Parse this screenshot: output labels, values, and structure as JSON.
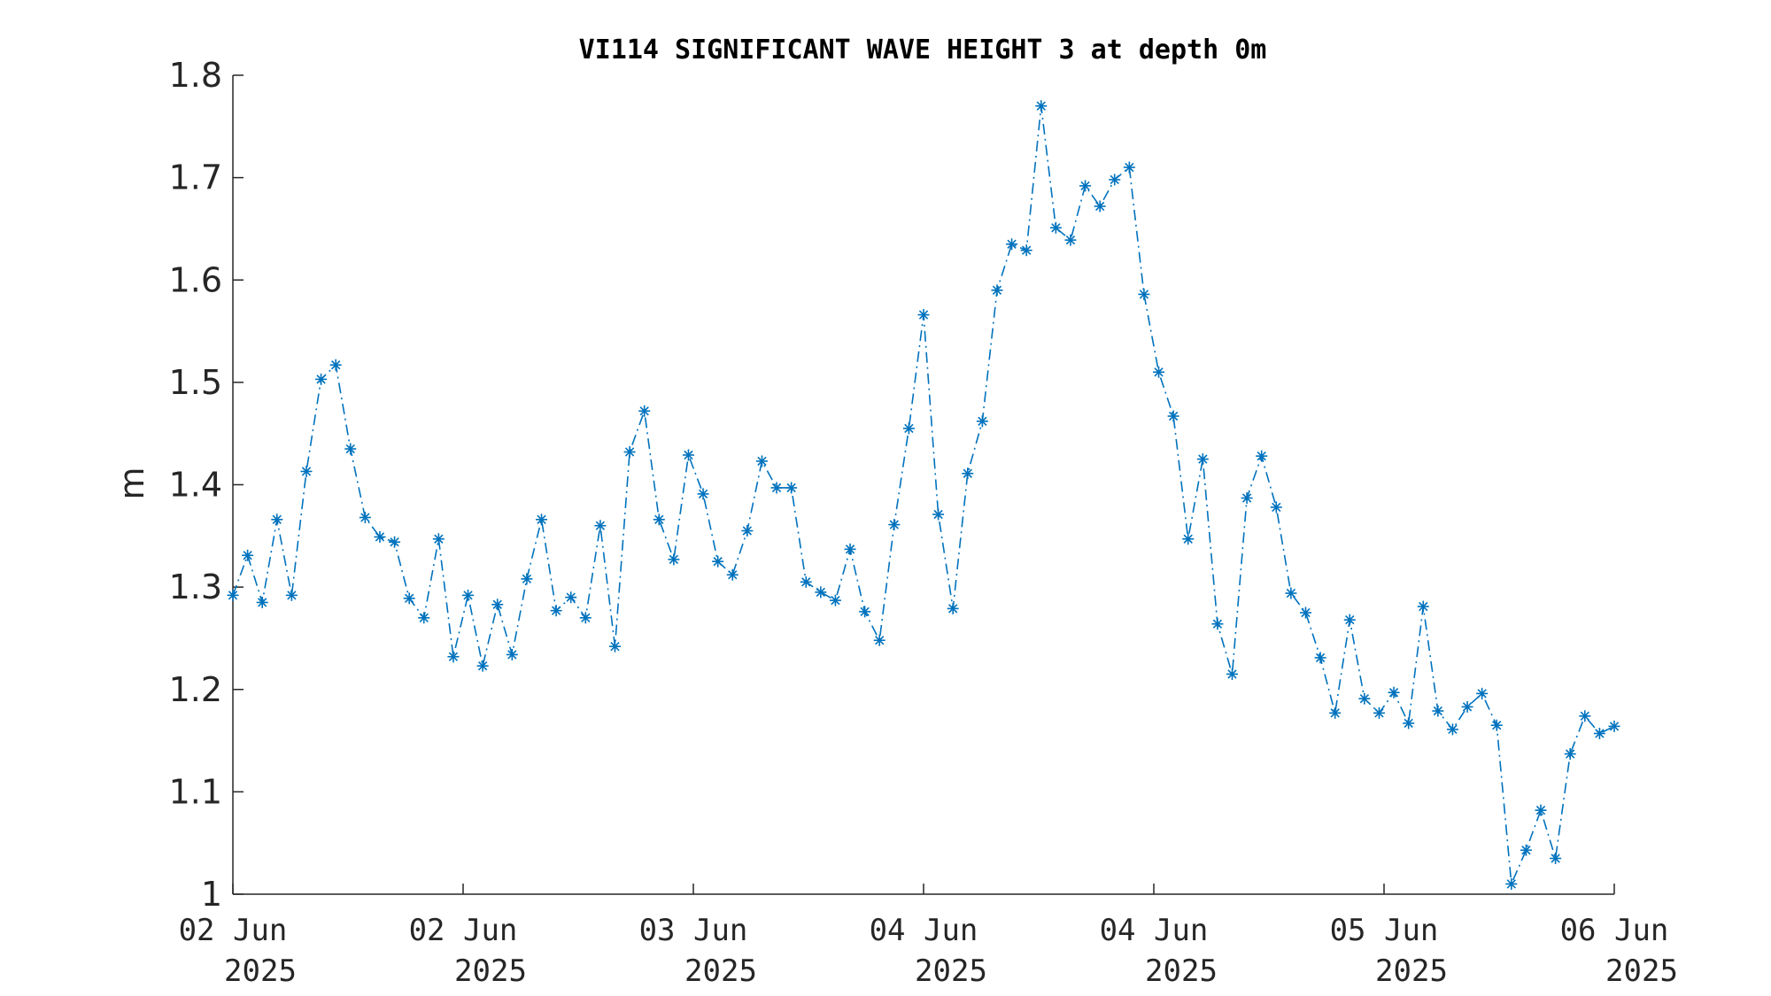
{
  "chart_data": {
    "type": "line",
    "title": "VI114 SIGNIFICANT WAVE HEIGHT 3 at depth 0m",
    "xlabel": "",
    "ylabel": "m",
    "ylim": [
      1.0,
      1.8
    ],
    "yticks": [
      "1",
      "1.1",
      "1.2",
      "1.3",
      "1.4",
      "1.5",
      "1.6",
      "1.7",
      "1.8"
    ],
    "xticks": [
      {
        "label1": "02 Jun",
        "label2": "2025"
      },
      {
        "label1": "02 Jun",
        "label2": "2025"
      },
      {
        "label1": "03 Jun",
        "label2": "2025"
      },
      {
        "label1": "04 Jun",
        "label2": "2025"
      },
      {
        "label1": "04 Jun",
        "label2": "2025"
      },
      {
        "label1": "05 Jun",
        "label2": "2025"
      },
      {
        "label1": "06 Jun",
        "label2": "2025"
      }
    ],
    "grid": false,
    "legend": "none",
    "series": [
      {
        "color": "#0072BD",
        "marker": "asterisk",
        "line_style": "dash-dot",
        "values": [
          1.292,
          1.331,
          1.285,
          1.366,
          1.292,
          1.413,
          1.503,
          1.517,
          1.435,
          1.368,
          1.349,
          1.344,
          1.289,
          1.27,
          1.347,
          1.232,
          1.292,
          1.223,
          1.283,
          1.234,
          1.308,
          1.366,
          1.277,
          1.29,
          1.27,
          1.36,
          1.242,
          1.432,
          1.472,
          1.366,
          1.327,
          1.429,
          1.391,
          1.325,
          1.312,
          1.355,
          1.423,
          1.397,
          1.397,
          1.305,
          1.295,
          1.287,
          1.337,
          1.276,
          1.248,
          1.361,
          1.455,
          1.566,
          1.371,
          1.279,
          1.411,
          1.462,
          1.59,
          1.635,
          1.629,
          1.77,
          1.651,
          1.639,
          1.692,
          1.672,
          1.698,
          1.71,
          1.586,
          1.51,
          1.467,
          1.347,
          1.425,
          1.264,
          1.215,
          1.387,
          1.428,
          1.378,
          1.294,
          1.275,
          1.231,
          1.177,
          1.268,
          1.191,
          1.177,
          1.197,
          1.167,
          1.281,
          1.179,
          1.161,
          1.183,
          1.196,
          1.165,
          1.01,
          1.043,
          1.082,
          1.035,
          1.137,
          1.174,
          1.157,
          1.164
        ]
      }
    ]
  }
}
